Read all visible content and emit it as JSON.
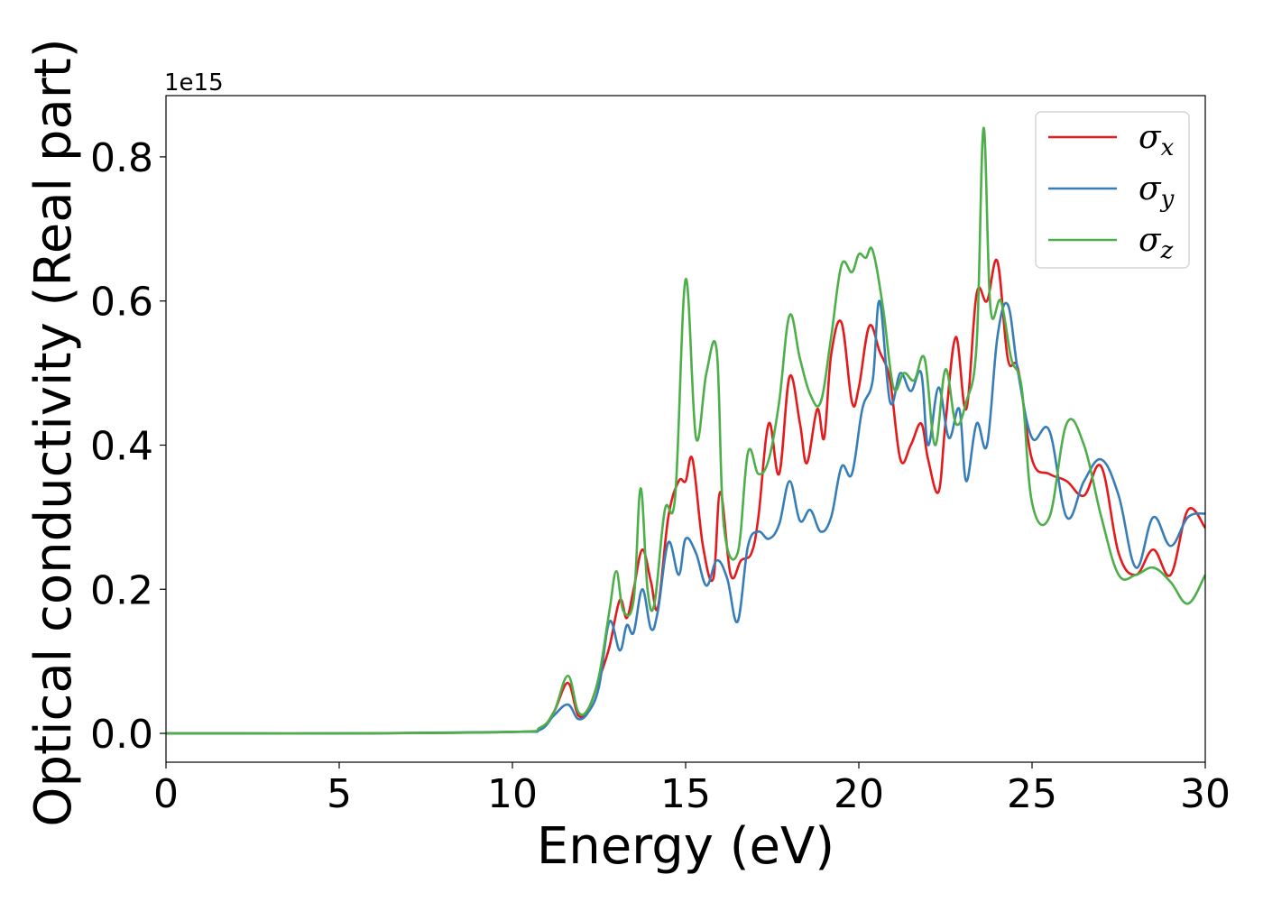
{
  "chart_data": {
    "type": "line",
    "xlabel": "Energy (eV)",
    "ylabel": "Optical conductivity (Real part)",
    "offset_text": "1e15",
    "xlim": [
      0,
      30
    ],
    "ylim": [
      -0.04,
      0.885
    ],
    "y_scale_exponent": 15,
    "xticks": [
      0,
      5,
      10,
      15,
      20,
      25,
      30
    ],
    "xtick_labels": [
      "0",
      "5",
      "10",
      "15",
      "20",
      "25",
      "30"
    ],
    "yticks": [
      0.0,
      0.2,
      0.4,
      0.6,
      0.8
    ],
    "ytick_labels": [
      "0.0",
      "0.2",
      "0.4",
      "0.6",
      "0.8"
    ],
    "grid": false,
    "legend_position": "top-right",
    "series": [
      {
        "name": "σx",
        "name_base": "σ",
        "name_sub": "x",
        "color": "#e41a1c",
        "x": [
          0,
          5,
          10,
          10.8,
          11.2,
          11.6,
          11.9,
          12.2,
          12.5,
          12.8,
          13.1,
          13.3,
          13.5,
          13.75,
          14.0,
          14.2,
          14.5,
          14.8,
          15.0,
          15.2,
          15.5,
          15.8,
          16.0,
          16.3,
          16.6,
          16.9,
          17.1,
          17.4,
          17.7,
          18.0,
          18.3,
          18.5,
          18.8,
          19.0,
          19.2,
          19.5,
          19.8,
          20.0,
          20.3,
          20.6,
          20.9,
          21.2,
          21.5,
          21.8,
          22.0,
          22.3,
          22.5,
          22.8,
          23.1,
          23.4,
          23.7,
          24.0,
          24.3,
          24.6,
          25.0,
          25.5,
          26.0,
          26.5,
          27.0,
          27.5,
          28.0,
          28.5,
          29.0,
          29.5,
          30.0
        ],
        "y": [
          0,
          0,
          0.002,
          0.007,
          0.03,
          0.07,
          0.025,
          0.035,
          0.075,
          0.12,
          0.185,
          0.16,
          0.2,
          0.255,
          0.21,
          0.175,
          0.3,
          0.35,
          0.35,
          0.38,
          0.26,
          0.215,
          0.335,
          0.22,
          0.24,
          0.25,
          0.3,
          0.43,
          0.36,
          0.495,
          0.43,
          0.375,
          0.45,
          0.41,
          0.525,
          0.57,
          0.46,
          0.48,
          0.565,
          0.53,
          0.49,
          0.38,
          0.4,
          0.43,
          0.38,
          0.335,
          0.43,
          0.55,
          0.45,
          0.61,
          0.6,
          0.655,
          0.52,
          0.505,
          0.38,
          0.36,
          0.35,
          0.33,
          0.37,
          0.25,
          0.22,
          0.255,
          0.22,
          0.31,
          0.285
        ]
      },
      {
        "name": "σy",
        "name_base": "σ",
        "name_sub": "y",
        "color": "#377eb8",
        "x": [
          0,
          5,
          10,
          10.8,
          11.2,
          11.6,
          11.9,
          12.2,
          12.5,
          12.8,
          13.1,
          13.3,
          13.5,
          13.75,
          14.0,
          14.2,
          14.5,
          14.8,
          15.0,
          15.3,
          15.6,
          15.9,
          16.2,
          16.5,
          16.8,
          17.1,
          17.4,
          17.7,
          18.0,
          18.3,
          18.6,
          18.9,
          19.2,
          19.5,
          19.8,
          20.1,
          20.4,
          20.6,
          20.9,
          21.2,
          21.5,
          21.8,
          22.0,
          22.3,
          22.6,
          22.9,
          23.1,
          23.4,
          23.7,
          24.0,
          24.3,
          24.6,
          25.0,
          25.5,
          26.0,
          26.5,
          27.0,
          27.5,
          28.0,
          28.5,
          29.0,
          29.5,
          30.0
        ],
        "y": [
          0,
          0,
          0.002,
          0.005,
          0.025,
          0.04,
          0.02,
          0.03,
          0.065,
          0.155,
          0.115,
          0.15,
          0.14,
          0.2,
          0.145,
          0.17,
          0.265,
          0.22,
          0.27,
          0.25,
          0.205,
          0.24,
          0.215,
          0.155,
          0.26,
          0.28,
          0.27,
          0.29,
          0.35,
          0.295,
          0.31,
          0.28,
          0.3,
          0.37,
          0.36,
          0.45,
          0.49,
          0.6,
          0.46,
          0.5,
          0.475,
          0.5,
          0.4,
          0.48,
          0.41,
          0.45,
          0.35,
          0.43,
          0.4,
          0.55,
          0.595,
          0.5,
          0.41,
          0.42,
          0.3,
          0.35,
          0.38,
          0.33,
          0.23,
          0.3,
          0.26,
          0.3,
          0.305
        ]
      },
      {
        "name": "σz",
        "name_base": "σ",
        "name_sub": "z",
        "color": "#4daf4a",
        "x": [
          0,
          5,
          10,
          10.8,
          11.2,
          11.6,
          11.9,
          12.2,
          12.5,
          12.8,
          13.0,
          13.2,
          13.5,
          13.7,
          13.9,
          14.1,
          14.4,
          14.7,
          15.0,
          15.3,
          15.6,
          15.9,
          16.1,
          16.5,
          16.8,
          17.1,
          17.4,
          17.7,
          18.0,
          18.3,
          18.6,
          18.9,
          19.2,
          19.5,
          19.8,
          20.0,
          20.2,
          20.4,
          20.7,
          21.0,
          21.3,
          21.6,
          21.9,
          22.2,
          22.5,
          22.8,
          23.1,
          23.4,
          23.6,
          23.8,
          24.1,
          24.4,
          24.7,
          25.0,
          25.5,
          26.0,
          26.5,
          27.0,
          27.5,
          28.0,
          28.5,
          29.0,
          29.5,
          30.0
        ],
        "y": [
          0,
          0,
          0.002,
          0.008,
          0.03,
          0.08,
          0.03,
          0.035,
          0.08,
          0.17,
          0.225,
          0.17,
          0.185,
          0.34,
          0.2,
          0.18,
          0.31,
          0.33,
          0.63,
          0.41,
          0.5,
          0.53,
          0.29,
          0.25,
          0.39,
          0.36,
          0.38,
          0.46,
          0.58,
          0.52,
          0.47,
          0.46,
          0.55,
          0.65,
          0.64,
          0.665,
          0.66,
          0.67,
          0.59,
          0.48,
          0.5,
          0.49,
          0.52,
          0.4,
          0.505,
          0.43,
          0.46,
          0.54,
          0.84,
          0.59,
          0.6,
          0.52,
          0.48,
          0.32,
          0.3,
          0.43,
          0.4,
          0.3,
          0.22,
          0.22,
          0.23,
          0.21,
          0.18,
          0.22
        ]
      }
    ]
  }
}
